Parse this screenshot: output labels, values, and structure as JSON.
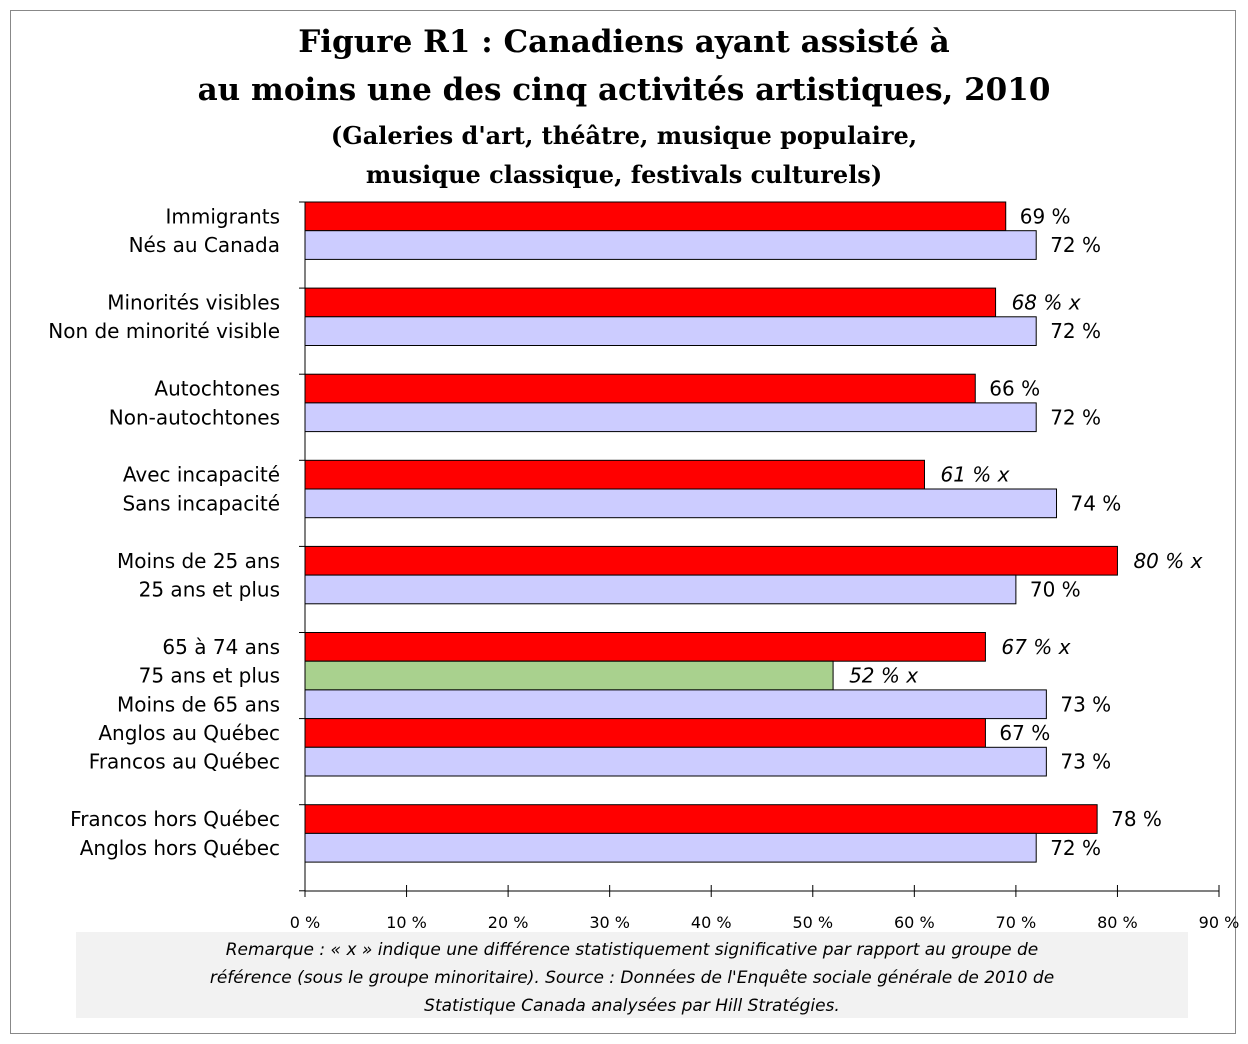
{
  "chart_data": {
    "type": "bar",
    "orientation": "horizontal",
    "title": "Figure R1 : Canadiens ayant assisté à",
    "title_line2": "au moins une des cinq activités artistiques, 2010",
    "subtitle": "(Galeries d'art, théâtre, musique populaire,",
    "subtitle_line2": "musique classique, festivals culturels)",
    "xlim": [
      0,
      90
    ],
    "x_ticks": [
      "0 %",
      "10 %",
      "20 %",
      "30 %",
      "40 %",
      "50 %",
      "60 %",
      "70 %",
      "80 %",
      "90 %"
    ],
    "grid": false,
    "colors": {
      "minority": "#ff0000",
      "reference": "#ccccff",
      "oldest": "#a9d18e"
    },
    "groups": [
      {
        "bars": [
          {
            "label": "Immigrants",
            "value": 69,
            "text": "69 %",
            "italic": false,
            "color": "minority"
          },
          {
            "label": "Nés au Canada",
            "value": 72,
            "text": "72 %",
            "italic": false,
            "color": "reference"
          }
        ]
      },
      {
        "bars": [
          {
            "label": "Minorités visibles",
            "value": 68,
            "text": "68 % x",
            "italic": true,
            "color": "minority"
          },
          {
            "label": "Non de minorité visible",
            "value": 72,
            "text": "72 %",
            "italic": false,
            "color": "reference"
          }
        ]
      },
      {
        "bars": [
          {
            "label": "Autochtones",
            "value": 66,
            "text": "66 %",
            "italic": false,
            "color": "minority"
          },
          {
            "label": "Non-autochtones",
            "value": 72,
            "text": "72 %",
            "italic": false,
            "color": "reference"
          }
        ]
      },
      {
        "bars": [
          {
            "label": "Avec incapacité",
            "value": 61,
            "text": "61 % x",
            "italic": true,
            "color": "minority"
          },
          {
            "label": "Sans incapacité",
            "value": 74,
            "text": "74 %",
            "italic": false,
            "color": "reference"
          }
        ]
      },
      {
        "bars": [
          {
            "label": "Moins de 25 ans",
            "value": 80,
            "text": "80 % x",
            "italic": true,
            "color": "minority"
          },
          {
            "label": "25 ans et plus",
            "value": 70,
            "text": "70 %",
            "italic": false,
            "color": "reference"
          }
        ]
      },
      {
        "bars": [
          {
            "label": "65 à 74 ans",
            "value": 67,
            "text": "67 % x",
            "italic": true,
            "color": "minority"
          },
          {
            "label": "75 ans et plus",
            "value": 52,
            "text": "52 % x",
            "italic": true,
            "color": "oldest"
          },
          {
            "label": "Moins de 65 ans",
            "value": 73,
            "text": "73 %",
            "italic": false,
            "color": "reference"
          }
        ]
      },
      {
        "bars": [
          {
            "label": "Anglos au Québec",
            "value": 67,
            "text": "67 %",
            "italic": false,
            "color": "minority"
          },
          {
            "label": "Francos au Québec",
            "value": 73,
            "text": "73 %",
            "italic": false,
            "color": "reference"
          }
        ]
      },
      {
        "bars": [
          {
            "label": "Francos hors Québec",
            "value": 78,
            "text": "78 %",
            "italic": false,
            "color": "minority"
          },
          {
            "label": "Anglos hors Québec",
            "value": 72,
            "text": "72 %",
            "italic": false,
            "color": "reference"
          }
        ]
      }
    ]
  },
  "note": {
    "line1": "Remarque : « x » indique une différence statistiquement significative par rapport au groupe de",
    "line2": "référence (sous le groupe minoritaire). Source : Données de l'Enquête sociale générale de 2010 de",
    "line3": "Statistique Canada analysées par Hill Stratégies."
  }
}
